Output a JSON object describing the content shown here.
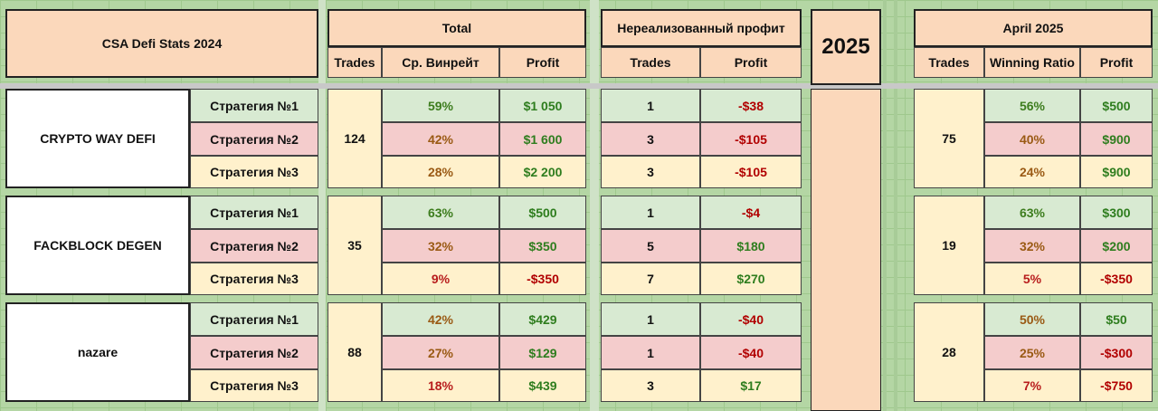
{
  "header": {
    "sheet_title": "CSA Defi Stats 2024",
    "total_label": "Total",
    "total_cols": [
      "Trades",
      "Ср. Винрейт",
      "Profit"
    ],
    "unrealized_label": "Нереализованный профит",
    "unrealized_cols": [
      "Trades",
      "Profit"
    ],
    "year_label": "2025",
    "april_label": "April 2025",
    "april_cols": [
      "Trades",
      "Winning Ratio",
      "Profit"
    ]
  },
  "groups": [
    {
      "name": "CRYPTO WAY DEFI",
      "total_trades": "124",
      "april_trades": "75",
      "rows": [
        {
          "strategy": "Стратегия №1",
          "winrate": "59%",
          "profit": "$1 050",
          "u_trades": "1",
          "u_profit": "-$38",
          "a_ratio": "56%",
          "a_profit": "$500"
        },
        {
          "strategy": "Стратегия №2",
          "winrate": "42%",
          "profit": "$1 600",
          "u_trades": "3",
          "u_profit": "-$105",
          "a_ratio": "40%",
          "a_profit": "$900"
        },
        {
          "strategy": "Стратегия №3",
          "winrate": "28%",
          "profit": "$2 200",
          "u_trades": "3",
          "u_profit": "-$105",
          "a_ratio": "24%",
          "a_profit": "$900"
        }
      ]
    },
    {
      "name": "FACKBLOCK DEGEN",
      "total_trades": "35",
      "april_trades": "19",
      "rows": [
        {
          "strategy": "Стратегия №1",
          "winrate": "63%",
          "profit": "$500",
          "u_trades": "1",
          "u_profit": "-$4",
          "a_ratio": "63%",
          "a_profit": "$300"
        },
        {
          "strategy": "Стратегия №2",
          "winrate": "32%",
          "profit": "$350",
          "u_trades": "5",
          "u_profit": "$180",
          "a_ratio": "32%",
          "a_profit": "$200"
        },
        {
          "strategy": "Стратегия №3",
          "winrate": "9%",
          "profit": "-$350",
          "u_trades": "7",
          "u_profit": "$270",
          "a_ratio": "5%",
          "a_profit": "-$350"
        }
      ]
    },
    {
      "name": "nazare",
      "total_trades": "88",
      "april_trades": "28",
      "rows": [
        {
          "strategy": "Стратегия №1",
          "winrate": "42%",
          "profit": "$429",
          "u_trades": "1",
          "u_profit": "-$40",
          "a_ratio": "50%",
          "a_profit": "$50"
        },
        {
          "strategy": "Стратегия №2",
          "winrate": "27%",
          "profit": "$129",
          "u_trades": "1",
          "u_profit": "-$40",
          "a_ratio": "25%",
          "a_profit": "-$300"
        },
        {
          "strategy": "Стратегия №3",
          "winrate": "18%",
          "profit": "$439",
          "u_trades": "3",
          "u_profit": "$17",
          "a_ratio": "7%",
          "a_profit": "-$750"
        }
      ]
    }
  ]
}
